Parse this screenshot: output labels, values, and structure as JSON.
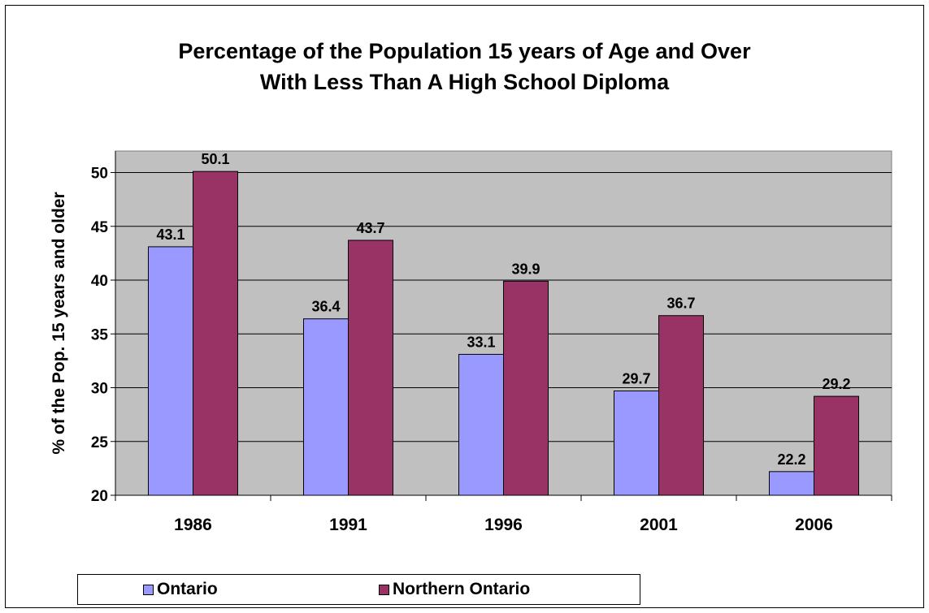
{
  "chart_data": {
    "type": "bar",
    "title_lines": [
      "Percentage of the Population 15 years of Age and Over",
      "With Less Than A High School Diploma"
    ],
    "xlabel": "",
    "ylabel": "% of the Pop. 15 years and older",
    "ylim": [
      20,
      52
    ],
    "yticks": [
      20,
      25,
      30,
      35,
      40,
      45,
      50
    ],
    "categories": [
      "1986",
      "1991",
      "1996",
      "2001",
      "2006"
    ],
    "series": [
      {
        "name": "Ontario",
        "color": "#9999FF",
        "values": [
          43.1,
          36.4,
          33.1,
          29.7,
          22.2
        ]
      },
      {
        "name": "Northern Ontario",
        "color": "#993366",
        "values": [
          50.1,
          43.7,
          39.9,
          36.7,
          29.2
        ]
      }
    ],
    "data_labels": true,
    "grid": "horizontal",
    "plot_background": "#C0C0C0",
    "legend_position": "bottom-left"
  }
}
